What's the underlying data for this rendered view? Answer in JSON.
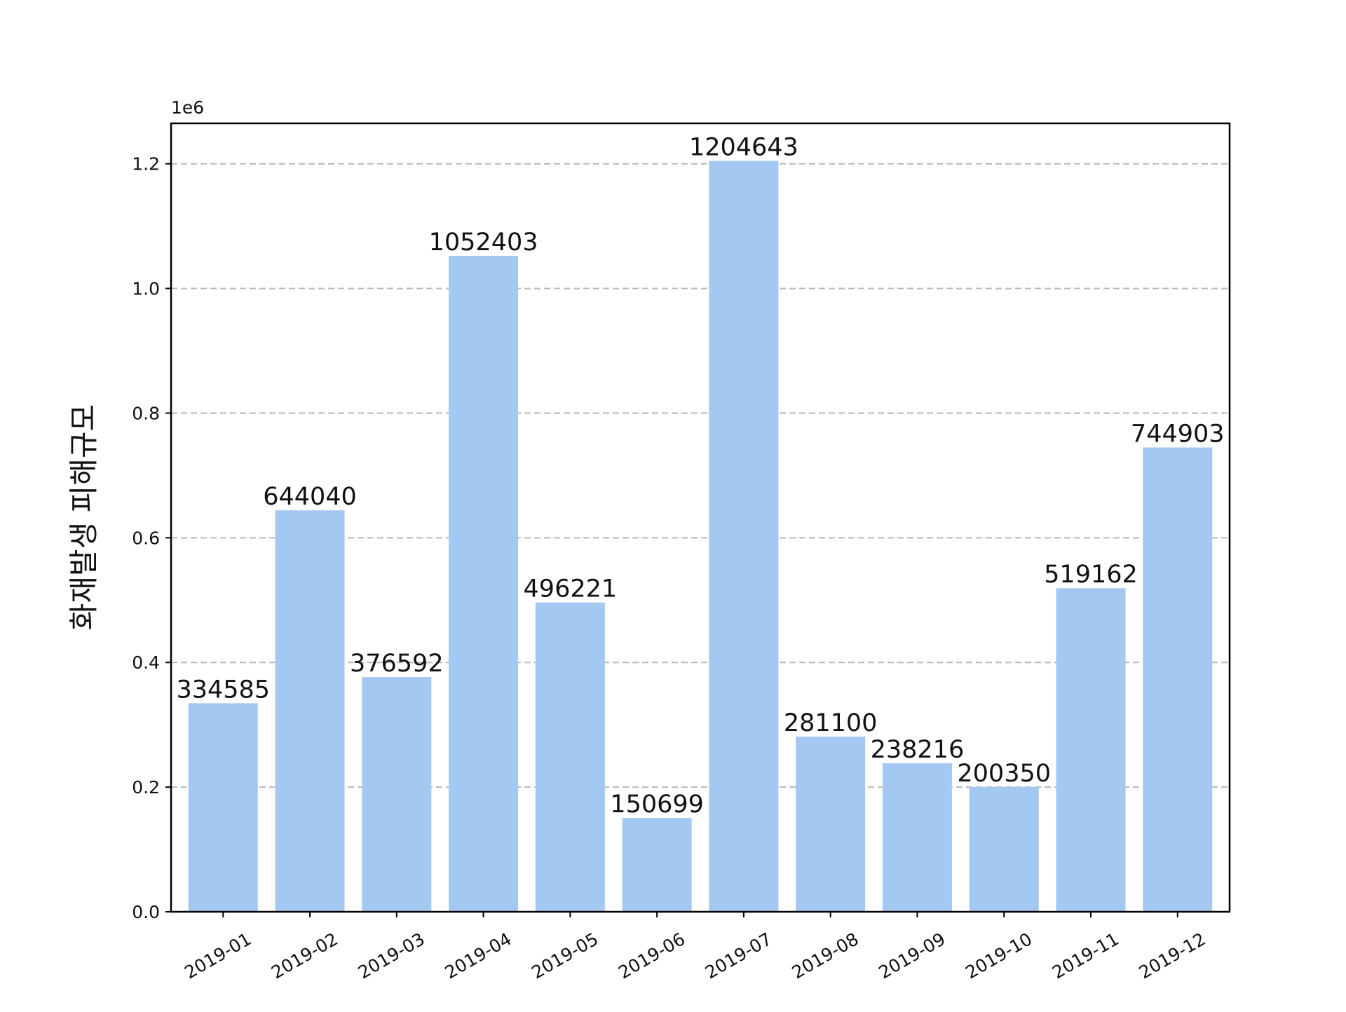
{
  "chart_data": {
    "type": "bar",
    "title": "",
    "xlabel": "",
    "ylabel": "화재발생 피해규모",
    "y_offset_label": "1e6",
    "categories": [
      "2019-01",
      "2019-02",
      "2019-03",
      "2019-04",
      "2019-05",
      "2019-06",
      "2019-07",
      "2019-08",
      "2019-09",
      "2019-10",
      "2019-11",
      "2019-12"
    ],
    "values": [
      334585,
      644040,
      376592,
      1052403,
      496221,
      150699,
      1204643,
      281100,
      238216,
      200350,
      519162,
      744903
    ],
    "data_labels": [
      "334585",
      "644040",
      "376592",
      "1052403",
      "496221",
      "150699",
      "1204643",
      "281100",
      "238216",
      "200350",
      "519162",
      "744903"
    ],
    "ylim": [
      0,
      1264875
    ],
    "y_ticks": [
      0,
      200000,
      400000,
      600000,
      800000,
      1000000,
      1200000
    ],
    "y_tick_labels": [
      "0.0",
      "0.2",
      "0.4",
      "0.6",
      "0.8",
      "1.0",
      "1.2"
    ],
    "bar_color": "#a3c8f2",
    "grid": "y-dashed",
    "grid_color": "#b8b8b8",
    "legend": "none"
  }
}
